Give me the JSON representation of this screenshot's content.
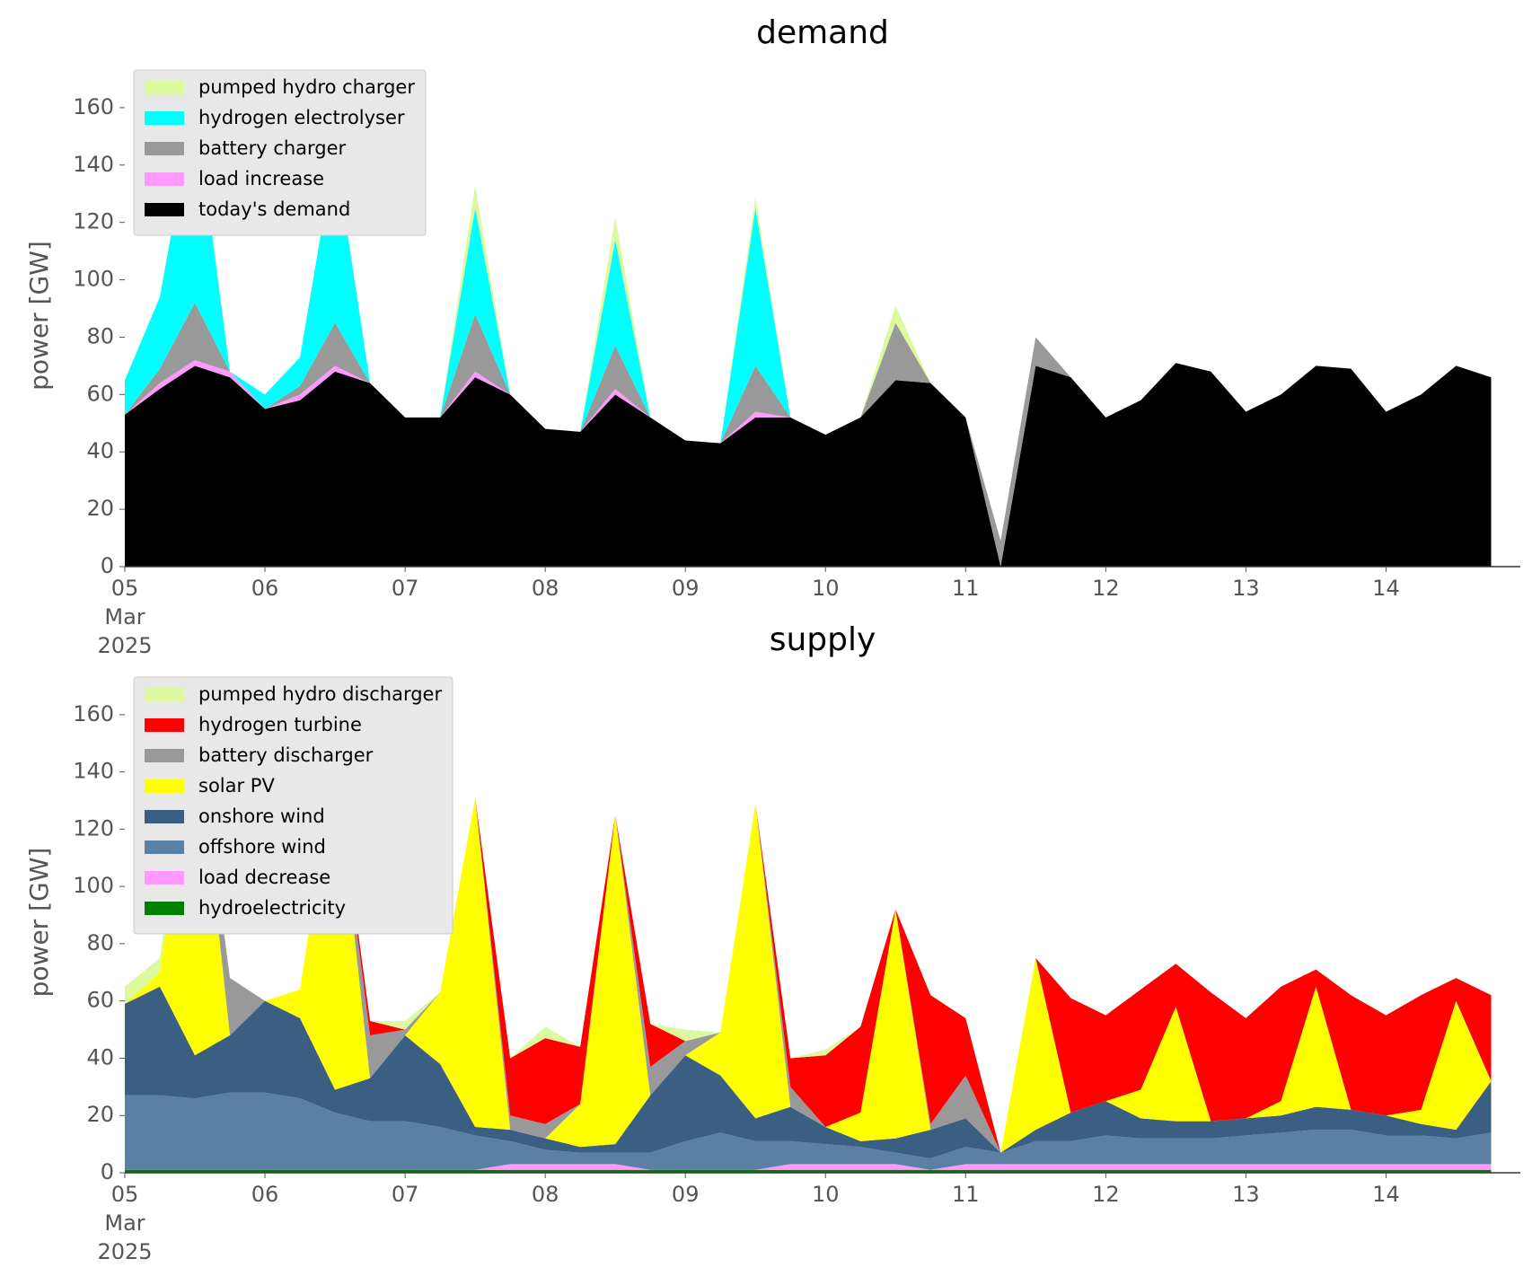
{
  "chart_data": [
    {
      "type": "stacked_area",
      "title": "demand",
      "ylabel": "power [GW]",
      "x": [
        "2025-03-05T00:00",
        "2025-03-05T06:00",
        "2025-03-05T12:00",
        "2025-03-05T18:00",
        "2025-03-06T00:00",
        "2025-03-06T06:00",
        "2025-03-06T12:00",
        "2025-03-06T18:00",
        "2025-03-07T00:00",
        "2025-03-07T06:00",
        "2025-03-07T12:00",
        "2025-03-07T18:00",
        "2025-03-08T00:00",
        "2025-03-08T06:00",
        "2025-03-08T12:00",
        "2025-03-08T18:00",
        "2025-03-09T00:00",
        "2025-03-09T06:00",
        "2025-03-09T12:00",
        "2025-03-09T18:00",
        "2025-03-10T00:00",
        "2025-03-10T06:00",
        "2025-03-10T12:00",
        "2025-03-10T18:00",
        "2025-03-11T00:00",
        "2025-03-11T06:00",
        "2025-03-11T12:00",
        "2025-03-11T18:00",
        "2025-03-12T00:00",
        "2025-03-12T06:00",
        "2025-03-12T12:00",
        "2025-03-12T18:00",
        "2025-03-13T00:00",
        "2025-03-13T06:00",
        "2025-03-13T12:00",
        "2025-03-13T18:00",
        "2025-03-14T00:00",
        "2025-03-14T06:00",
        "2025-03-14T12:00",
        "2025-03-14T18:00"
      ],
      "series": [
        {
          "name": "today's demand",
          "color": "#000000",
          "values": [
            53,
            62,
            70,
            66,
            55,
            58,
            68,
            64,
            52,
            52,
            66,
            60,
            48,
            47,
            60,
            52,
            44,
            43,
            52,
            52,
            46,
            52,
            65,
            64,
            52,
            0,
            70,
            66,
            52,
            58,
            71,
            68,
            54,
            60,
            70,
            69,
            54,
            60,
            70,
            66
          ]
        },
        {
          "name": "load increase",
          "color": "#ff99ff",
          "values": [
            0,
            2,
            2,
            2,
            0,
            2,
            2,
            0,
            0,
            0,
            2,
            0,
            0,
            0,
            2,
            0,
            0,
            0,
            2,
            0,
            0,
            0,
            0,
            0,
            0,
            0,
            0,
            0,
            0,
            0,
            0,
            0,
            0,
            0,
            0,
            0,
            0,
            0,
            0,
            0
          ]
        },
        {
          "name": "battery charger",
          "color": "#999999",
          "values": [
            0,
            5,
            20,
            0,
            0,
            3,
            15,
            0,
            0,
            0,
            20,
            0,
            0,
            0,
            15,
            0,
            0,
            0,
            16,
            0,
            0,
            0,
            20,
            0,
            0,
            9,
            10,
            0,
            0,
            0,
            0,
            0,
            0,
            0,
            0,
            0,
            0,
            0,
            0,
            0
          ]
        },
        {
          "name": "hydrogen electrolyser",
          "color": "#00ffff",
          "values": [
            12,
            25,
            70,
            0,
            5,
            10,
            60,
            0,
            0,
            0,
            37,
            0,
            0,
            0,
            37,
            0,
            0,
            0,
            55,
            0,
            0,
            0,
            0,
            0,
            0,
            0,
            0,
            0,
            0,
            0,
            0,
            0,
            0,
            0,
            0,
            0,
            0,
            0,
            0,
            0
          ]
        },
        {
          "name": "pumped hydro charger",
          "color": "#ddf9a0",
          "values": [
            0,
            0,
            3,
            0,
            0,
            0,
            0,
            0,
            0,
            0,
            8,
            0,
            0,
            0,
            8,
            0,
            0,
            0,
            4,
            0,
            0,
            0,
            6,
            0,
            0,
            0,
            0,
            0,
            0,
            0,
            0,
            0,
            0,
            0,
            0,
            0,
            0,
            0,
            0,
            0
          ]
        }
      ],
      "xlim": [
        "2025-03-05T00:00",
        "2025-03-14T23:00"
      ],
      "xticks": [
        {
          "value": "2025-03-05T00:00",
          "label": "05"
        },
        {
          "value": "2025-03-06T00:00",
          "label": "06"
        },
        {
          "value": "2025-03-07T00:00",
          "label": "07"
        },
        {
          "value": "2025-03-08T00:00",
          "label": "08"
        },
        {
          "value": "2025-03-09T00:00",
          "label": "09"
        },
        {
          "value": "2025-03-10T00:00",
          "label": "10"
        },
        {
          "value": "2025-03-11T00:00",
          "label": "11"
        },
        {
          "value": "2025-03-12T00:00",
          "label": "12"
        },
        {
          "value": "2025-03-13T00:00",
          "label": "13"
        },
        {
          "value": "2025-03-14T00:00",
          "label": "14"
        }
      ],
      "x_offset_label": [
        "Mar",
        "2025"
      ],
      "ylim": [
        0,
        175
      ],
      "yticks": [
        0,
        20,
        40,
        60,
        80,
        100,
        120,
        140,
        160
      ],
      "legend": "upper left"
    },
    {
      "type": "stacked_area",
      "title": "supply",
      "ylabel": "power [GW]",
      "x": [
        "2025-03-05T00:00",
        "2025-03-05T06:00",
        "2025-03-05T12:00",
        "2025-03-05T18:00",
        "2025-03-06T00:00",
        "2025-03-06T06:00",
        "2025-03-06T12:00",
        "2025-03-06T18:00",
        "2025-03-07T00:00",
        "2025-03-07T06:00",
        "2025-03-07T12:00",
        "2025-03-07T18:00",
        "2025-03-08T00:00",
        "2025-03-08T06:00",
        "2025-03-08T12:00",
        "2025-03-08T18:00",
        "2025-03-09T00:00",
        "2025-03-09T06:00",
        "2025-03-09T12:00",
        "2025-03-09T18:00",
        "2025-03-10T00:00",
        "2025-03-10T06:00",
        "2025-03-10T12:00",
        "2025-03-10T18:00",
        "2025-03-11T00:00",
        "2025-03-11T06:00",
        "2025-03-11T12:00",
        "2025-03-11T18:00",
        "2025-03-12T00:00",
        "2025-03-12T06:00",
        "2025-03-12T12:00",
        "2025-03-12T18:00",
        "2025-03-13T00:00",
        "2025-03-13T06:00",
        "2025-03-13T12:00",
        "2025-03-13T18:00",
        "2025-03-14T00:00",
        "2025-03-14T06:00",
        "2025-03-14T12:00",
        "2025-03-14T18:00"
      ],
      "series": [
        {
          "name": "hydroelectricity",
          "color": "#008000",
          "values": [
            1,
            1,
            1,
            1,
            1,
            1,
            1,
            1,
            1,
            1,
            1,
            1,
            1,
            1,
            1,
            1,
            1,
            1,
            1,
            1,
            1,
            1,
            1,
            1,
            1,
            1,
            1,
            1,
            1,
            1,
            1,
            1,
            1,
            1,
            1,
            1,
            1,
            1,
            1,
            1
          ]
        },
        {
          "name": "load decrease",
          "color": "#ff99ff",
          "values": [
            0,
            0,
            0,
            0,
            0,
            0,
            0,
            0,
            0,
            0,
            0,
            2,
            2,
            2,
            2,
            0,
            0,
            0,
            0,
            2,
            2,
            2,
            2,
            0,
            2,
            2,
            2,
            2,
            2,
            2,
            2,
            2,
            2,
            2,
            2,
            2,
            2,
            2,
            2,
            2
          ]
        },
        {
          "name": "offshore wind",
          "color": "#5a80a4",
          "values": [
            26,
            26,
            25,
            27,
            27,
            25,
            20,
            17,
            17,
            15,
            12,
            8,
            5,
            4,
            4,
            6,
            10,
            13,
            10,
            8,
            7,
            6,
            4,
            4,
            6,
            4,
            8,
            8,
            10,
            9,
            9,
            9,
            10,
            11,
            12,
            12,
            10,
            10,
            9,
            11
          ]
        },
        {
          "name": "onshore wind",
          "color": "#3b5f82",
          "values": [
            32,
            38,
            15,
            20,
            32,
            28,
            8,
            15,
            30,
            22,
            3,
            4,
            4,
            2,
            3,
            20,
            30,
            20,
            8,
            12,
            6,
            2,
            5,
            10,
            10,
            0,
            4,
            10,
            12,
            7,
            6,
            6,
            6,
            6,
            8,
            7,
            7,
            4,
            3,
            18
          ]
        },
        {
          "name": "solar PV",
          "color": "#ffff00",
          "values": [
            0,
            5,
            120,
            0,
            0,
            10,
            115,
            0,
            0,
            25,
            115,
            0,
            0,
            15,
            115,
            0,
            0,
            15,
            110,
            0,
            0,
            10,
            80,
            0,
            0,
            0,
            60,
            0,
            0,
            10,
            40,
            0,
            0,
            5,
            42,
            0,
            0,
            5,
            45,
            0
          ]
        },
        {
          "name": "battery discharger",
          "color": "#999999",
          "values": [
            0,
            0,
            0,
            20,
            0,
            0,
            0,
            15,
            2,
            0,
            0,
            5,
            5,
            0,
            0,
            10,
            5,
            0,
            0,
            7,
            0,
            0,
            0,
            2,
            15,
            0,
            0,
            0,
            0,
            0,
            0,
            0,
            0,
            0,
            0,
            0,
            0,
            0,
            0,
            0
          ]
        },
        {
          "name": "hydrogen turbine",
          "color": "#ff0000",
          "values": [
            0,
            0,
            0,
            0,
            0,
            0,
            0,
            5,
            0,
            0,
            0,
            20,
            30,
            20,
            0,
            15,
            0,
            0,
            0,
            10,
            25,
            30,
            0,
            45,
            20,
            0,
            0,
            40,
            30,
            35,
            15,
            45,
            35,
            40,
            6,
            40,
            35,
            40,
            8,
            30
          ]
        },
        {
          "name": "pumped hydro discharger",
          "color": "#ddf9a0",
          "values": [
            6,
            5,
            0,
            0,
            0,
            0,
            0,
            0,
            3,
            0,
            0,
            0,
            4,
            0,
            0,
            0,
            4,
            0,
            0,
            0,
            2,
            0,
            0,
            0,
            0,
            0,
            0,
            0,
            0,
            0,
            0,
            0,
            0,
            0,
            0,
            0,
            0,
            0,
            0,
            0
          ]
        }
      ],
      "xlim": [
        "2025-03-05T00:00",
        "2025-03-14T23:00"
      ],
      "xticks": [
        {
          "value": "2025-03-05T00:00",
          "label": "05"
        },
        {
          "value": "2025-03-06T00:00",
          "label": "06"
        },
        {
          "value": "2025-03-07T00:00",
          "label": "07"
        },
        {
          "value": "2025-03-08T00:00",
          "label": "08"
        },
        {
          "value": "2025-03-09T00:00",
          "label": "09"
        },
        {
          "value": "2025-03-10T00:00",
          "label": "10"
        },
        {
          "value": "2025-03-11T00:00",
          "label": "11"
        },
        {
          "value": "2025-03-12T00:00",
          "label": "12"
        },
        {
          "value": "2025-03-13T00:00",
          "label": "13"
        },
        {
          "value": "2025-03-14T00:00",
          "label": "14"
        }
      ],
      "x_offset_label": [
        "Mar",
        "2025"
      ],
      "ylim": [
        0,
        175
      ],
      "yticks": [
        0,
        20,
        40,
        60,
        80,
        100,
        120,
        140,
        160
      ],
      "legend": "upper left"
    }
  ]
}
